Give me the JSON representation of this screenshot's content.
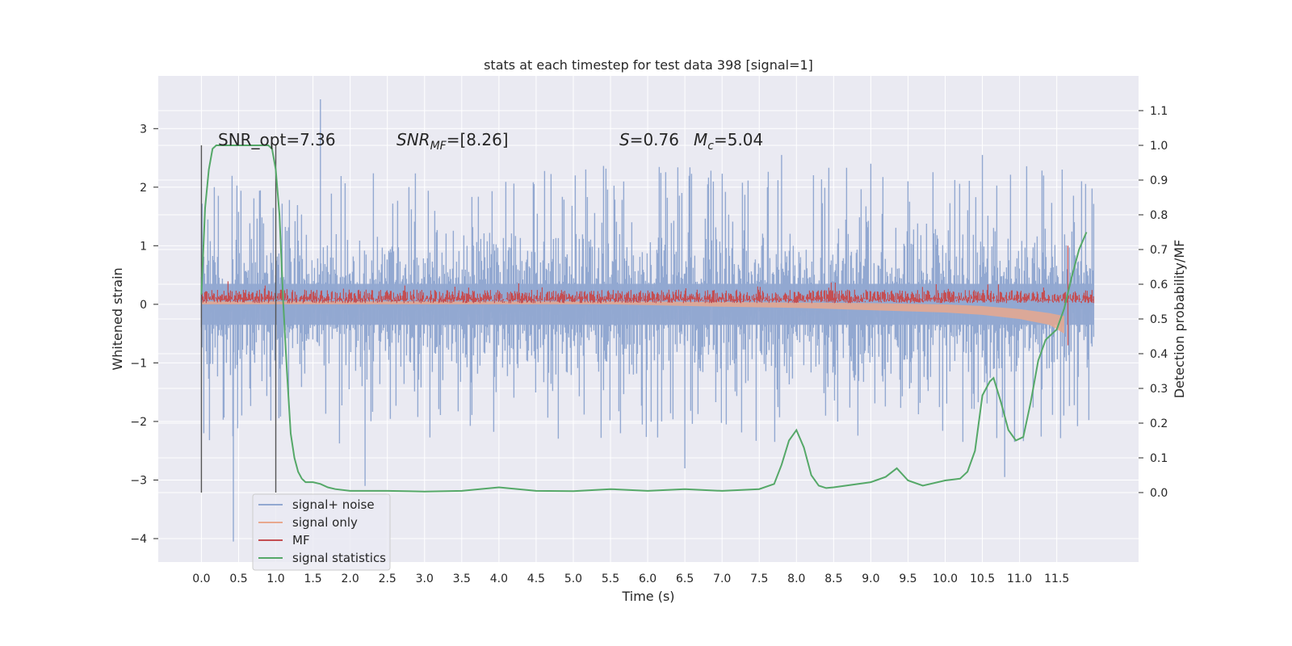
{
  "chart_data": {
    "type": "line",
    "title": "stats at each timestep for test data 398 [signal=1]",
    "xlabel": "Time (s)",
    "ylabel_left": "Whitened strain",
    "ylabel_right": "Detection probability/MF",
    "xlim": [
      -0.58,
      12.6
    ],
    "ylim_left": [
      -4.4,
      3.9
    ],
    "ylim_right": [
      -0.2,
      1.2
    ],
    "x_ticks": [
      0.0,
      0.5,
      1.0,
      1.5,
      2.0,
      2.5,
      3.0,
      3.5,
      4.0,
      4.5,
      5.0,
      5.5,
      6.0,
      6.5,
      7.0,
      7.5,
      8.0,
      8.5,
      9.0,
      9.5,
      10.0,
      10.5,
      11.0,
      11.5
    ],
    "x_tick_labels": [
      "0.0",
      "0.5",
      "1.0",
      "1.5",
      "2.0",
      "2.5",
      "3.0",
      "3.5",
      "4.0",
      "4.5",
      "5.0",
      "5.5",
      "6.0",
      "6.5",
      "7.0",
      "7.5",
      "8.0",
      "8.5",
      "9.0",
      "9.5",
      "10.0",
      "10.5",
      "11.0",
      "11.5"
    ],
    "y_left_ticks": [
      -4,
      -3,
      -2,
      -1,
      0,
      1,
      2,
      3
    ],
    "y_left_tick_labels": [
      "−4",
      "−3",
      "−2",
      "−1",
      "0",
      "1",
      "2",
      "3"
    ],
    "y_right_ticks": [
      0.0,
      0.1,
      0.2,
      0.3,
      0.4,
      0.5,
      0.6,
      0.7,
      0.8,
      0.9,
      1.0,
      1.1
    ],
    "y_right_tick_labels": [
      "0.0",
      "0.1",
      "0.2",
      "0.3",
      "0.4",
      "0.5",
      "0.6",
      "0.7",
      "0.8",
      "0.9",
      "1.0",
      "1.1"
    ],
    "grid": true,
    "legend_position": "lower-left",
    "annotations": {
      "snr_opt": "SNR_opt=7.36",
      "snr_mf_symbol": "SNR",
      "snr_mf_subscript": "MF",
      "snr_mf_value": "=[8.26]",
      "s_symbol": "S",
      "s_value": "=0.76",
      "mc_symbol": "M",
      "mc_subscript": "c",
      "mc_value": "=5.04"
    },
    "vertical_lines_x": [
      0.0,
      1.0
    ],
    "series": [
      {
        "name": "signal+ noise",
        "color": "#92a8d1",
        "axis": "left",
        "style": "noise band",
        "x_range": [
          0.0,
          12.0
        ],
        "typical_range": [
          -1.4,
          1.4
        ],
        "peak_values": [
          {
            "x": 0.43,
            "y": -4.05
          },
          {
            "x": 1.6,
            "y": 3.5
          },
          {
            "x": 2.2,
            "y": -3.1
          },
          {
            "x": 6.5,
            "y": -2.8
          },
          {
            "x": 7.8,
            "y": 2.55
          },
          {
            "x": 9.0,
            "y": 2.4
          },
          {
            "x": 10.5,
            "y": 2.55
          },
          {
            "x": 10.8,
            "y": -2.95
          }
        ]
      },
      {
        "name": "signal only",
        "color": "#e8a88e",
        "axis": "left",
        "style": "chirp envelope",
        "x": [
          0.0,
          5.5,
          7.0,
          8.0,
          9.0,
          10.0,
          10.5,
          11.0,
          11.4,
          11.6
        ],
        "upper": [
          0.05,
          0.05,
          0.04,
          0.03,
          0.02,
          0.0,
          -0.03,
          -0.08,
          -0.15,
          -0.2
        ],
        "lower": [
          0.0,
          0.0,
          -0.04,
          -0.06,
          -0.1,
          -0.14,
          -0.18,
          -0.25,
          -0.35,
          -0.5
        ]
      },
      {
        "name": "MF",
        "color": "#c44e52",
        "axis": "left",
        "style": "noise band",
        "x_range": [
          0.0,
          12.0
        ],
        "typical_range": [
          0.0,
          0.3
        ],
        "peak_values": [
          {
            "x": 11.65,
            "y": 1.0
          },
          {
            "x": 11.65,
            "y": -0.7
          }
        ]
      },
      {
        "name": "signal statistics",
        "color": "#55a868",
        "axis": "right",
        "style": "line",
        "x": [
          0.0,
          0.05,
          0.1,
          0.15,
          0.2,
          0.3,
          0.5,
          0.7,
          0.9,
          0.95,
          1.0,
          1.05,
          1.1,
          1.15,
          1.2,
          1.25,
          1.3,
          1.35,
          1.4,
          1.5,
          1.6,
          1.7,
          1.8,
          2.0,
          2.5,
          3.0,
          3.5,
          4.0,
          4.5,
          5.0,
          5.5,
          6.0,
          6.5,
          7.0,
          7.5,
          7.7,
          7.8,
          7.9,
          8.0,
          8.1,
          8.2,
          8.3,
          8.4,
          8.5,
          9.0,
          9.2,
          9.35,
          9.5,
          9.7,
          10.0,
          10.2,
          10.3,
          10.4,
          10.5,
          10.6,
          10.65,
          10.75,
          10.85,
          10.95,
          11.05,
          11.15,
          11.25,
          11.35,
          11.5,
          11.6,
          11.7,
          11.8,
          11.9
        ],
        "y": [
          0.57,
          0.82,
          0.93,
          0.99,
          1.0,
          1.0,
          1.0,
          1.0,
          1.0,
          0.99,
          0.93,
          0.8,
          0.55,
          0.35,
          0.17,
          0.1,
          0.06,
          0.04,
          0.03,
          0.03,
          0.025,
          0.015,
          0.01,
          0.005,
          0.005,
          0.003,
          0.005,
          0.015,
          0.005,
          0.004,
          0.01,
          0.005,
          0.01,
          0.005,
          0.01,
          0.025,
          0.08,
          0.15,
          0.18,
          0.13,
          0.05,
          0.02,
          0.013,
          0.015,
          0.03,
          0.045,
          0.07,
          0.035,
          0.02,
          0.035,
          0.04,
          0.06,
          0.12,
          0.28,
          0.32,
          0.33,
          0.26,
          0.18,
          0.15,
          0.16,
          0.26,
          0.38,
          0.44,
          0.47,
          0.53,
          0.62,
          0.7,
          0.75
        ]
      }
    ]
  }
}
